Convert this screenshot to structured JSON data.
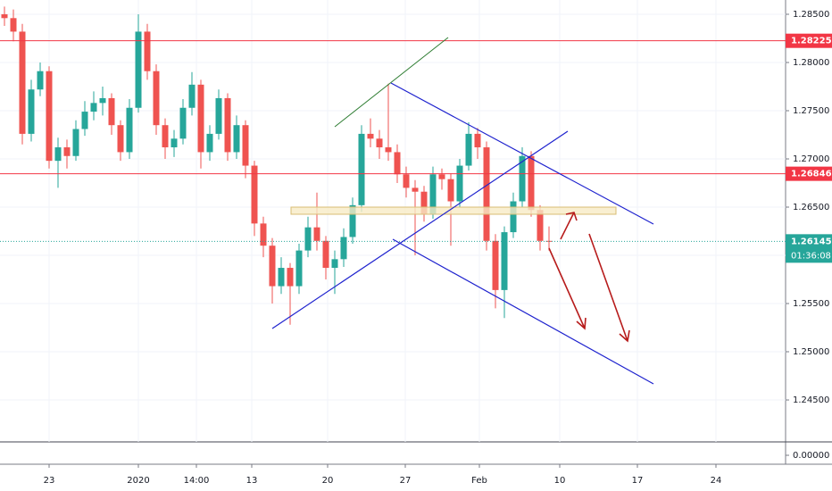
{
  "chart_data": {
    "type": "candlestick",
    "x": [
      0.5,
      1.5,
      2.5,
      3.5,
      4.5,
      5.5,
      6.5,
      7.5,
      8.5,
      9.5,
      10.5,
      11.5,
      12.5,
      13.5,
      14.5,
      15.5,
      16.5,
      17.5,
      18.5,
      19.5,
      20.5,
      21.5,
      22.5,
      23.5,
      24.5,
      25.5,
      26.5,
      27.5,
      28.5,
      29.5,
      30.5,
      31.5,
      32.5,
      33.5,
      34.5,
      35.5,
      36.5,
      37.5,
      38.5,
      39.5,
      40.5,
      41.5,
      42.5,
      43.5,
      44.5,
      45.5,
      46.5,
      47.5,
      48.5,
      49.5,
      50.5,
      51.5,
      52.5,
      53.5,
      54.5,
      55.5,
      56.5,
      57.5,
      58.5,
      59.5,
      60.5,
      61.5
    ],
    "open": [
      1.285,
      1.2846,
      1.2832,
      1.2726,
      1.2772,
      1.2791,
      1.2698,
      1.2712,
      1.2703,
      1.2731,
      1.2749,
      1.2758,
      1.2763,
      1.2735,
      1.2707,
      1.2753,
      1.2832,
      1.2791,
      1.2735,
      1.2712,
      1.2721,
      1.2753,
      1.2777,
      1.2707,
      1.2726,
      1.2763,
      1.2707,
      1.2735,
      1.2693,
      1.2633,
      1.261,
      1.2568,
      1.2587,
      1.2568,
      1.2605,
      1.2629,
      1.2615,
      1.2587,
      1.2596,
      1.2619,
      1.2652,
      1.2726,
      1.2721,
      1.2712,
      1.2707,
      1.2684,
      1.267,
      1.2666,
      1.2643,
      1.2684,
      1.2679,
      1.2656,
      1.2693,
      1.2726,
      1.2712,
      1.2615,
      1.2564,
      1.2624,
      1.2656,
      1.2703,
      1.2647,
      1.2615
    ],
    "high": [
      1.2858,
      1.2855,
      1.284,
      1.2782,
      1.28,
      1.2796,
      1.2722,
      1.272,
      1.274,
      1.276,
      1.277,
      1.2775,
      1.2768,
      1.274,
      1.2762,
      1.285,
      1.284,
      1.2798,
      1.2742,
      1.273,
      1.2762,
      1.279,
      1.2782,
      1.2735,
      1.2772,
      1.2768,
      1.2745,
      1.274,
      1.2698,
      1.264,
      1.2618,
      1.2598,
      1.2592,
      1.2612,
      1.264,
      1.2665,
      1.262,
      1.2605,
      1.2628,
      1.266,
      1.2735,
      1.2742,
      1.273,
      1.2778,
      1.2715,
      1.2692,
      1.2678,
      1.2672,
      1.2692,
      1.269,
      1.2685,
      1.27,
      1.2738,
      1.2732,
      1.2718,
      1.2622,
      1.263,
      1.2665,
      1.2712,
      1.2708,
      1.2652,
      1.263
    ],
    "low": [
      1.2838,
      1.2822,
      1.2715,
      1.2718,
      1.2765,
      1.269,
      1.267,
      1.269,
      1.2698,
      1.2724,
      1.274,
      1.2745,
      1.2725,
      1.2698,
      1.27,
      1.2748,
      1.2782,
      1.2725,
      1.27,
      1.2702,
      1.2715,
      1.2745,
      1.269,
      1.2698,
      1.272,
      1.2698,
      1.27,
      1.268,
      1.262,
      1.2598,
      1.255,
      1.256,
      1.2528,
      1.256,
      1.2598,
      1.2605,
      1.2575,
      1.256,
      1.2588,
      1.2612,
      1.2645,
      1.2712,
      1.27,
      1.2698,
      1.2675,
      1.266,
      1.26,
      1.2635,
      1.2638,
      1.2668,
      1.261,
      1.265,
      1.2688,
      1.27,
      1.2605,
      1.2545,
      1.2535,
      1.2618,
      1.265,
      1.264,
      1.2605,
      1.2605
    ],
    "close": [
      1.2846,
      1.2832,
      1.2726,
      1.2772,
      1.2791,
      1.2698,
      1.2712,
      1.2703,
      1.2731,
      1.2749,
      1.2758,
      1.2763,
      1.2735,
      1.2707,
      1.2753,
      1.2832,
      1.2791,
      1.2735,
      1.2712,
      1.2721,
      1.2753,
      1.2777,
      1.2707,
      1.2726,
      1.2763,
      1.2707,
      1.2735,
      1.2693,
      1.2633,
      1.261,
      1.2568,
      1.2587,
      1.2568,
      1.2605,
      1.2629,
      1.2615,
      1.2587,
      1.2596,
      1.2619,
      1.2652,
      1.2726,
      1.2721,
      1.2712,
      1.2707,
      1.2684,
      1.267,
      1.2666,
      1.2643,
      1.2684,
      1.2679,
      1.2656,
      1.2693,
      1.2726,
      1.2712,
      1.2615,
      1.2564,
      1.2624,
      1.2656,
      1.2703,
      1.2647,
      1.2615,
      1.26145
    ],
    "up_color": "#26a69a",
    "down_color": "#ef5350",
    "xlim": [
      0,
      88
    ],
    "xticks": [
      {
        "value": 5.5,
        "label": "23"
      },
      {
        "value": 15.5,
        "label": "2020"
      },
      {
        "value": 22,
        "label": "14:00"
      },
      {
        "value": 28.2,
        "label": "13"
      },
      {
        "value": 36.7,
        "label": "20"
      },
      {
        "value": 45.4,
        "label": "27"
      },
      {
        "value": 53.7,
        "label": "Feb"
      },
      {
        "value": 62.7,
        "label": "10"
      },
      {
        "value": 71.4,
        "label": "17"
      },
      {
        "value": 80.2,
        "label": "24"
      }
    ],
    "ylim": [
      1.24065,
      1.28648
    ],
    "yticks": [
      {
        "value": 1.285,
        "label": "1.28500"
      },
      {
        "value": 1.28,
        "label": "1.28000"
      },
      {
        "value": 1.275,
        "label": "1.27500"
      },
      {
        "value": 1.27,
        "label": "1.27000"
      },
      {
        "value": 1.265,
        "label": "1.26500"
      },
      {
        "value": 1.26,
        "label": "1.26000"
      },
      {
        "value": 1.255,
        "label": "1.25500"
      },
      {
        "value": 1.25,
        "label": "1.25000"
      },
      {
        "value": 1.245,
        "label": "1.24500"
      }
    ],
    "price_lines": [
      {
        "value": 1.28225,
        "color": "#f23645"
      },
      {
        "value": 1.26846,
        "color": "#f23645"
      },
      {
        "value": 1.26145,
        "color": "#26a69a"
      }
    ],
    "countdown": "01:36:08",
    "lower_pane": {
      "yticks": [
        {
          "value": 0,
          "label": "0.00000"
        }
      ]
    }
  }
}
